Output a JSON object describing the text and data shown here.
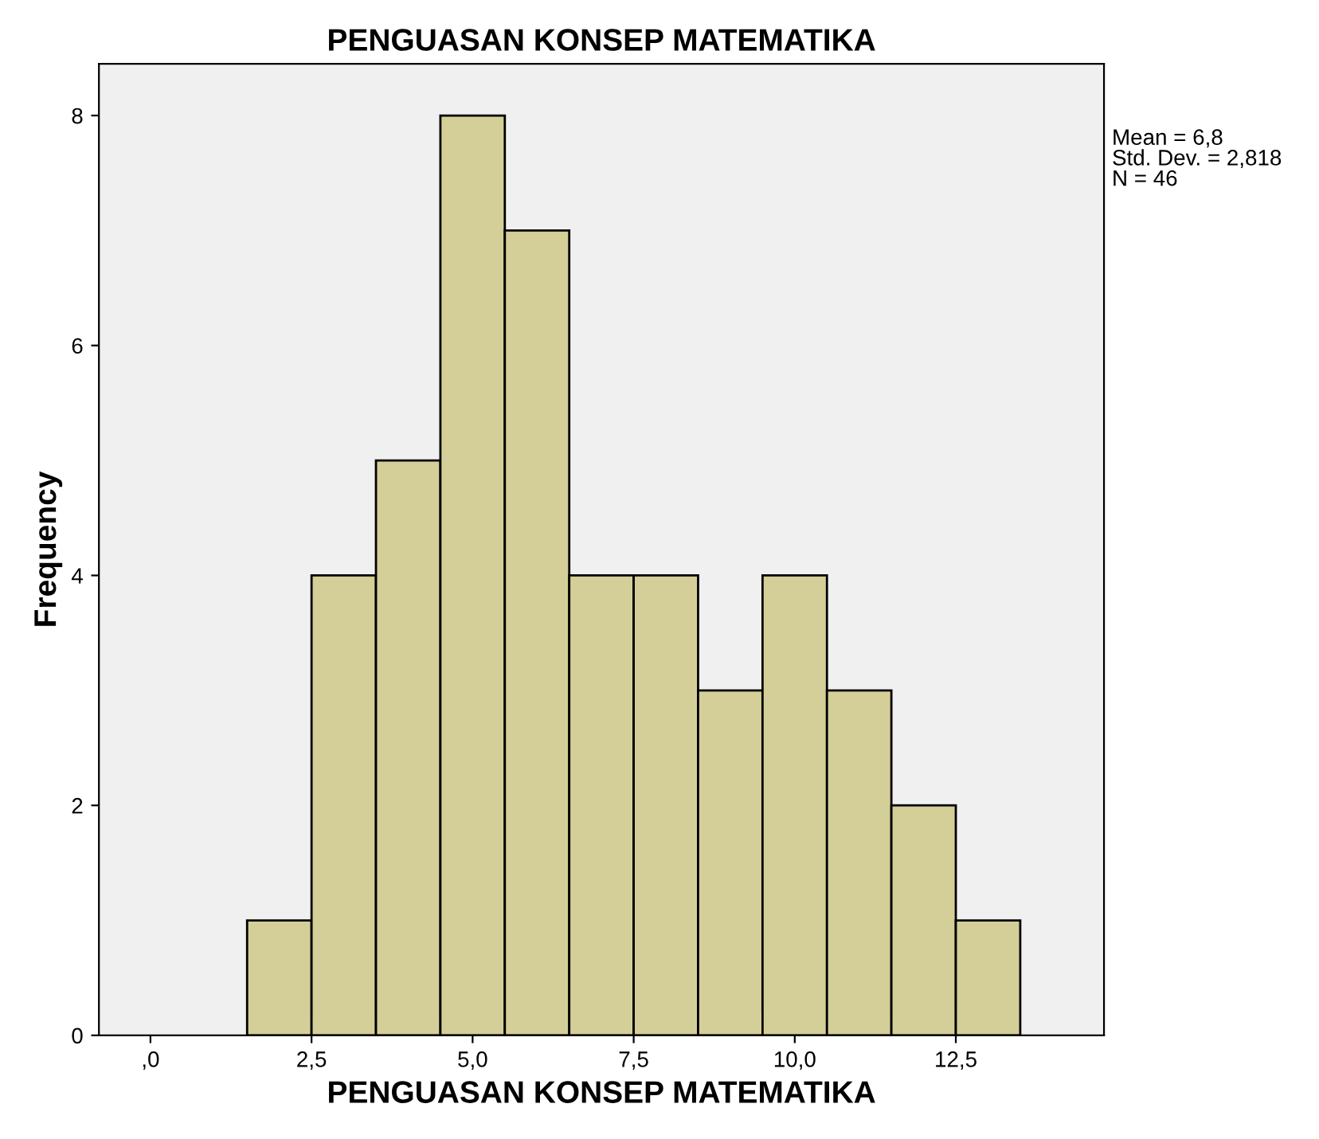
{
  "chart_data": {
    "type": "histogram",
    "title": "PENGUASAN KONSEP MATEMATIKA",
    "xlabel": "PENGUASAN KONSEP MATEMATIKA",
    "ylabel": "Frequency",
    "bins": [
      1.5,
      2.5,
      3.5,
      4.5,
      5.5,
      6.5,
      7.5,
      8.5,
      9.5,
      10.5,
      11.5,
      12.5,
      13.5
    ],
    "values": [
      1,
      4,
      5,
      8,
      7,
      4,
      4,
      3,
      4,
      3,
      2,
      1
    ],
    "color": "#d4cf98",
    "xlim": [
      -0.8,
      14.8
    ],
    "ylim": [
      0,
      8.45
    ],
    "xticks": [
      {
        "value": 0,
        "label": ",0"
      },
      {
        "value": 2.5,
        "label": "2,5"
      },
      {
        "value": 5,
        "label": "5,0"
      },
      {
        "value": 7.5,
        "label": "7,5"
      },
      {
        "value": 10,
        "label": "10,0"
      },
      {
        "value": 12.5,
        "label": "12,5"
      }
    ],
    "yticks": [
      0,
      2,
      4,
      6,
      8
    ],
    "annotations": [
      "Mean = 6,8",
      "Std. Dev. = 2,818",
      "N = 46"
    ],
    "grid": false,
    "legend": false
  }
}
